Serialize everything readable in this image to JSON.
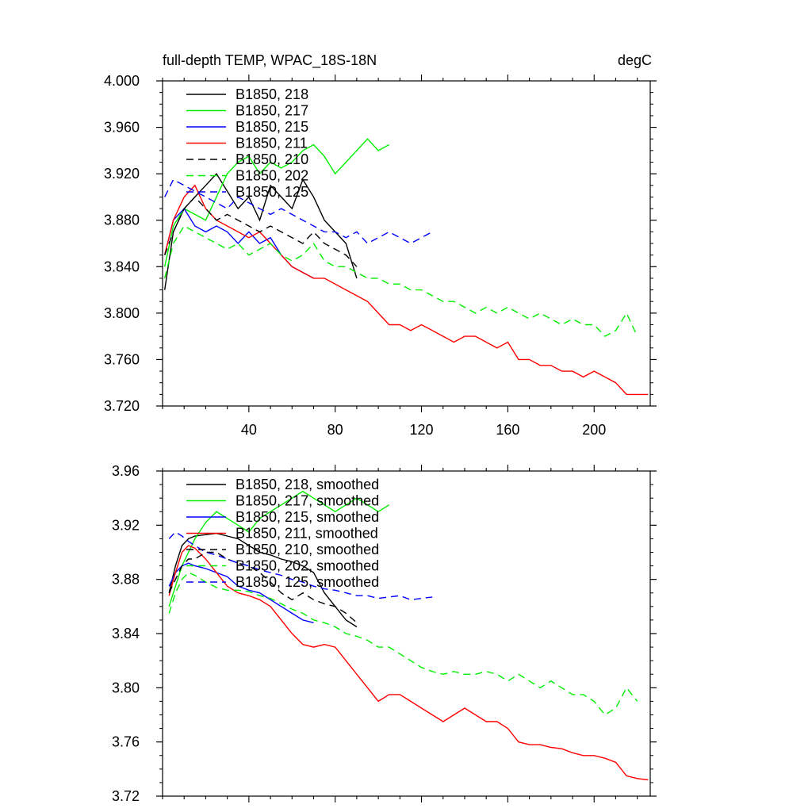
{
  "figure": {
    "title_left": "full-depth TEMP, WPAC_18S-18N",
    "title_right": "degC"
  },
  "chart_data": [
    {
      "type": "line",
      "panel": "top",
      "xlim": [
        0,
        226
      ],
      "ylim": [
        3.72,
        4.0
      ],
      "xticks": [
        40,
        80,
        120,
        160,
        200
      ],
      "xtick_labels": [
        "40",
        "80",
        "120",
        "160",
        "200"
      ],
      "yticks": [
        3.72,
        3.76,
        3.8,
        3.84,
        3.88,
        3.92,
        3.96,
        4.0
      ],
      "ytick_labels": [
        "3.720",
        "3.760",
        "3.800",
        "3.840",
        "3.880",
        "3.920",
        "3.960",
        "4.000"
      ],
      "legend_position": "top-left",
      "series": [
        {
          "name": "B1850, 218",
          "color": "#000000",
          "dash": "solid",
          "legend_label": "B1850, 218",
          "x": [
            1,
            5,
            10,
            15,
            20,
            25,
            30,
            35,
            40,
            45,
            50,
            55,
            60,
            65,
            70,
            75,
            80,
            85,
            90
          ],
          "y": [
            3.82,
            3.87,
            3.89,
            3.9,
            3.91,
            3.92,
            3.905,
            3.89,
            3.9,
            3.88,
            3.91,
            3.9,
            3.89,
            3.915,
            3.9,
            3.88,
            3.87,
            3.86,
            3.83
          ]
        },
        {
          "name": "B1850, 217",
          "color": "#00ee00",
          "dash": "solid",
          "legend_label": "B1850, 217",
          "x": [
            1,
            5,
            10,
            15,
            20,
            25,
            30,
            35,
            40,
            45,
            50,
            55,
            60,
            65,
            70,
            75,
            80,
            85,
            90,
            95,
            100,
            105
          ],
          "y": [
            3.84,
            3.875,
            3.89,
            3.885,
            3.88,
            3.9,
            3.92,
            3.93,
            3.935,
            3.92,
            3.93,
            3.925,
            3.93,
            3.94,
            3.945,
            3.935,
            3.92,
            3.93,
            3.94,
            3.95,
            3.94,
            3.945
          ]
        },
        {
          "name": "B1850, 215",
          "color": "#0000ff",
          "dash": "solid",
          "legend_label": "B1850, 215",
          "x": [
            1,
            5,
            10,
            15,
            20,
            25,
            30,
            35,
            40,
            45,
            50,
            55,
            60,
            65,
            70
          ],
          "y": [
            3.85,
            3.88,
            3.89,
            3.875,
            3.87,
            3.875,
            3.87,
            3.86,
            3.87,
            3.86,
            3.865,
            3.85,
            3.84,
            3.835,
            3.83
          ]
        },
        {
          "name": "B1850, 211",
          "color": "#ff0000",
          "dash": "solid",
          "legend_label": "B1850, 211",
          "x": [
            1,
            5,
            10,
            15,
            20,
            25,
            30,
            35,
            40,
            45,
            50,
            55,
            60,
            65,
            70,
            75,
            80,
            85,
            90,
            95,
            100,
            105,
            110,
            115,
            120,
            125,
            130,
            135,
            140,
            145,
            150,
            155,
            160,
            165,
            170,
            175,
            180,
            185,
            190,
            195,
            200,
            205,
            210,
            215,
            220,
            225
          ],
          "y": [
            3.85,
            3.88,
            3.9,
            3.91,
            3.89,
            3.88,
            3.875,
            3.87,
            3.865,
            3.87,
            3.86,
            3.85,
            3.84,
            3.835,
            3.83,
            3.83,
            3.825,
            3.82,
            3.815,
            3.81,
            3.8,
            3.79,
            3.79,
            3.785,
            3.79,
            3.785,
            3.78,
            3.775,
            3.78,
            3.78,
            3.775,
            3.77,
            3.775,
            3.76,
            3.76,
            3.755,
            3.755,
            3.75,
            3.75,
            3.745,
            3.75,
            3.745,
            3.74,
            3.73,
            3.73,
            3.73
          ]
        },
        {
          "name": "B1850, 210",
          "color": "#000000",
          "dash": "dashed",
          "legend_label": "B1850, 210",
          "x": [
            1,
            5,
            10,
            15,
            20,
            25,
            30,
            35,
            40,
            45,
            50,
            55,
            60,
            65,
            70,
            75,
            80,
            85,
            90
          ],
          "y": [
            3.85,
            3.87,
            3.89,
            3.9,
            3.89,
            3.88,
            3.885,
            3.88,
            3.875,
            3.87,
            3.875,
            3.87,
            3.865,
            3.86,
            3.87,
            3.86,
            3.855,
            3.85,
            3.84
          ]
        },
        {
          "name": "B1850, 202",
          "color": "#00ee00",
          "dash": "dashed",
          "legend_label": "B1850, 202",
          "x": [
            1,
            5,
            10,
            15,
            20,
            25,
            30,
            35,
            40,
            45,
            50,
            55,
            60,
            65,
            70,
            75,
            80,
            85,
            90,
            95,
            100,
            105,
            110,
            115,
            120,
            125,
            130,
            135,
            140,
            145,
            150,
            155,
            160,
            165,
            170,
            175,
            180,
            185,
            190,
            195,
            200,
            205,
            210,
            215,
            220
          ],
          "y": [
            3.83,
            3.86,
            3.875,
            3.87,
            3.865,
            3.86,
            3.855,
            3.86,
            3.85,
            3.855,
            3.86,
            3.85,
            3.845,
            3.85,
            3.86,
            3.845,
            3.84,
            3.84,
            3.835,
            3.83,
            3.83,
            3.825,
            3.825,
            3.82,
            3.82,
            3.815,
            3.81,
            3.81,
            3.805,
            3.8,
            3.805,
            3.8,
            3.805,
            3.8,
            3.795,
            3.8,
            3.795,
            3.79,
            3.795,
            3.79,
            3.79,
            3.78,
            3.785,
            3.8,
            3.78
          ]
        },
        {
          "name": "B1850, 125",
          "color": "#0000ff",
          "dash": "dashed",
          "legend_label": "B1850, 125",
          "x": [
            1,
            5,
            10,
            15,
            20,
            25,
            30,
            35,
            40,
            45,
            50,
            55,
            60,
            65,
            70,
            75,
            80,
            85,
            90,
            95,
            100,
            105,
            110,
            115,
            120,
            125
          ],
          "y": [
            3.9,
            3.915,
            3.91,
            3.905,
            3.9,
            3.895,
            3.89,
            3.9,
            3.895,
            3.89,
            3.885,
            3.89,
            3.885,
            3.88,
            3.875,
            3.87,
            3.87,
            3.865,
            3.87,
            3.86,
            3.865,
            3.87,
            3.865,
            3.86,
            3.865,
            3.87
          ]
        }
      ]
    },
    {
      "type": "line",
      "panel": "bottom",
      "xlim": [
        0,
        226
      ],
      "ylim": [
        3.72,
        3.96
      ],
      "xticks": [
        40,
        80,
        120,
        160,
        200
      ],
      "xtick_labels": [],
      "yticks": [
        3.72,
        3.76,
        3.8,
        3.84,
        3.88,
        3.92,
        3.96
      ],
      "ytick_labels": [
        "3.72",
        "3.76",
        "3.80",
        "3.84",
        "3.88",
        "3.92",
        "3.96"
      ],
      "legend_position": "top-left",
      "series": [
        {
          "name": "B1850, 218, smoothed",
          "color": "#000000",
          "dash": "solid",
          "legend_label": "B1850, 218, smoothed",
          "x": [
            3,
            6,
            9,
            12,
            15,
            20,
            25,
            30,
            35,
            40,
            45,
            50,
            55,
            60,
            65,
            70,
            75,
            80,
            85,
            90
          ],
          "y": [
            3.87,
            3.89,
            3.905,
            3.91,
            3.912,
            3.913,
            3.914,
            3.912,
            3.91,
            3.905,
            3.9,
            3.898,
            3.895,
            3.893,
            3.89,
            3.885,
            3.87,
            3.86,
            3.85,
            3.845
          ]
        },
        {
          "name": "B1850, 217, smoothed",
          "color": "#00ee00",
          "dash": "solid",
          "legend_label": "B1850, 217, smoothed",
          "x": [
            3,
            6,
            9,
            12,
            15,
            20,
            25,
            30,
            35,
            40,
            45,
            50,
            55,
            60,
            65,
            70,
            75,
            80,
            85,
            90,
            95,
            100,
            105
          ],
          "y": [
            3.86,
            3.875,
            3.89,
            3.9,
            3.91,
            3.922,
            3.93,
            3.925,
            3.92,
            3.915,
            3.925,
            3.93,
            3.935,
            3.94,
            3.945,
            3.94,
            3.935,
            3.93,
            3.935,
            3.94,
            3.935,
            3.93,
            3.935
          ]
        },
        {
          "name": "B1850, 215, smoothed",
          "color": "#0000ff",
          "dash": "solid",
          "legend_label": "B1850, 215, smoothed",
          "x": [
            3,
            6,
            9,
            12,
            15,
            20,
            25,
            30,
            35,
            40,
            45,
            50,
            55,
            60,
            65,
            70
          ],
          "y": [
            3.875,
            3.885,
            3.89,
            3.892,
            3.89,
            3.888,
            3.885,
            3.882,
            3.875,
            3.872,
            3.87,
            3.865,
            3.86,
            3.855,
            3.85,
            3.848
          ]
        },
        {
          "name": "B1850, 211, smoothed",
          "color": "#ff0000",
          "dash": "solid",
          "legend_label": "B1850, 211, smoothed",
          "x": [
            3,
            6,
            9,
            12,
            15,
            20,
            25,
            30,
            35,
            40,
            45,
            50,
            55,
            60,
            65,
            70,
            75,
            80,
            85,
            90,
            95,
            100,
            105,
            110,
            115,
            120,
            125,
            130,
            135,
            140,
            145,
            150,
            155,
            160,
            165,
            170,
            175,
            180,
            185,
            190,
            195,
            200,
            205,
            210,
            215,
            220,
            225
          ],
          "y": [
            3.868,
            3.885,
            3.9,
            3.905,
            3.903,
            3.895,
            3.885,
            3.875,
            3.87,
            3.868,
            3.865,
            3.86,
            3.85,
            3.84,
            3.832,
            3.83,
            3.832,
            3.83,
            3.82,
            3.81,
            3.8,
            3.79,
            3.795,
            3.795,
            3.79,
            3.785,
            3.78,
            3.775,
            3.78,
            3.785,
            3.78,
            3.775,
            3.775,
            3.77,
            3.76,
            3.758,
            3.758,
            3.756,
            3.755,
            3.752,
            3.75,
            3.75,
            3.748,
            3.745,
            3.735,
            3.733,
            3.732
          ]
        },
        {
          "name": "B1850, 210, smoothed",
          "color": "#000000",
          "dash": "dashed",
          "legend_label": "B1850, 210, smoothed",
          "x": [
            3,
            6,
            9,
            12,
            15,
            20,
            25,
            30,
            35,
            40,
            45,
            50,
            55,
            60,
            65,
            70,
            75,
            80,
            85,
            90
          ],
          "y": [
            3.87,
            3.88,
            3.89,
            3.895,
            3.895,
            3.9,
            3.9,
            3.895,
            3.892,
            3.89,
            3.885,
            3.878,
            3.87,
            3.865,
            3.87,
            3.865,
            3.862,
            3.86,
            3.855,
            3.848
          ]
        },
        {
          "name": "B1850, 202, smoothed",
          "color": "#00ee00",
          "dash": "dashed",
          "legend_label": "B1850, 202, smoothed",
          "x": [
            3,
            6,
            9,
            12,
            15,
            20,
            25,
            30,
            35,
            40,
            45,
            50,
            55,
            60,
            65,
            70,
            75,
            80,
            85,
            90,
            95,
            100,
            105,
            110,
            115,
            120,
            125,
            130,
            135,
            140,
            145,
            150,
            155,
            160,
            165,
            170,
            175,
            180,
            185,
            190,
            195,
            200,
            205,
            210,
            215,
            220
          ],
          "y": [
            3.855,
            3.87,
            3.88,
            3.885,
            3.883,
            3.878,
            3.874,
            3.872,
            3.872,
            3.871,
            3.868,
            3.866,
            3.862,
            3.858,
            3.855,
            3.85,
            3.848,
            3.845,
            3.84,
            3.838,
            3.835,
            3.83,
            3.83,
            3.825,
            3.82,
            3.815,
            3.812,
            3.81,
            3.812,
            3.81,
            3.81,
            3.812,
            3.81,
            3.805,
            3.81,
            3.805,
            3.8,
            3.805,
            3.8,
            3.795,
            3.795,
            3.79,
            3.78,
            3.785,
            3.8,
            3.79
          ]
        },
        {
          "name": "B1850, 125, smoothed",
          "color": "#0000ff",
          "dash": "dashed",
          "legend_label": "B1850, 125, smoothed",
          "x": [
            3,
            6,
            9,
            12,
            15,
            20,
            25,
            30,
            35,
            40,
            45,
            50,
            55,
            60,
            65,
            70,
            75,
            80,
            85,
            90,
            95,
            100,
            105,
            110,
            115,
            120,
            125
          ],
          "y": [
            3.91,
            3.915,
            3.912,
            3.908,
            3.905,
            3.9,
            3.898,
            3.895,
            3.892,
            3.89,
            3.887,
            3.885,
            3.883,
            3.88,
            3.878,
            3.875,
            3.873,
            3.872,
            3.87,
            3.868,
            3.868,
            3.866,
            3.867,
            3.868,
            3.865,
            3.866,
            3.867
          ]
        }
      ]
    }
  ]
}
